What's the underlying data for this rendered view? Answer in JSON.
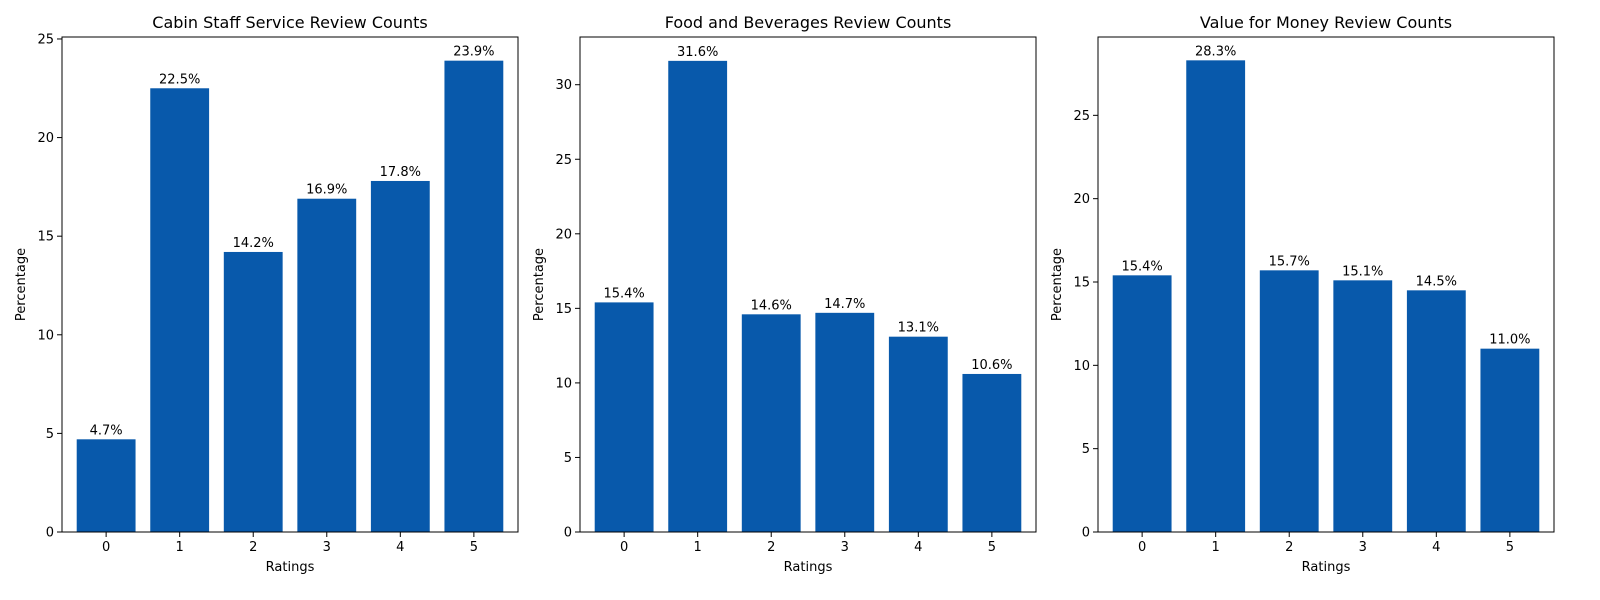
{
  "chart_data": [
    {
      "type": "bar",
      "title": "Cabin Staff Service Review Counts",
      "xlabel": "Ratings",
      "ylabel": "Percentage",
      "categories": [
        "0",
        "1",
        "2",
        "3",
        "4",
        "5"
      ],
      "values": [
        4.7,
        22.5,
        14.2,
        16.9,
        17.8,
        23.9
      ],
      "data_labels": [
        "4.7%",
        "22.5%",
        "14.2%",
        "16.9%",
        "17.8%",
        "23.9%"
      ],
      "ylim": [
        0,
        25.1
      ],
      "yticks": [
        0,
        5,
        10,
        15,
        20,
        25
      ],
      "color": "#0859AB",
      "grid": false,
      "legend": "none"
    },
    {
      "type": "bar",
      "title": "Food and Beverages Review Counts",
      "xlabel": "Ratings",
      "ylabel": "Percentage",
      "categories": [
        "0",
        "1",
        "2",
        "3",
        "4",
        "5"
      ],
      "values": [
        15.4,
        31.6,
        14.6,
        14.7,
        13.1,
        10.6
      ],
      "data_labels": [
        "15.4%",
        "31.6%",
        "14.6%",
        "14.7%",
        "13.1%",
        "10.6%"
      ],
      "ylim": [
        0,
        33.2
      ],
      "yticks": [
        0,
        5,
        10,
        15,
        20,
        25,
        30
      ],
      "color": "#0859AB",
      "grid": false,
      "legend": "none"
    },
    {
      "type": "bar",
      "title": "Value for Money Review Counts",
      "xlabel": "Ratings",
      "ylabel": "Percentage",
      "categories": [
        "0",
        "1",
        "2",
        "3",
        "4",
        "5"
      ],
      "values": [
        15.4,
        28.3,
        15.7,
        15.1,
        14.5,
        11.0
      ],
      "data_labels": [
        "15.4%",
        "28.3%",
        "15.7%",
        "15.1%",
        "14.5%",
        "11.0%"
      ],
      "ylim": [
        0,
        29.7
      ],
      "yticks": [
        0,
        5,
        10,
        15,
        20,
        25
      ],
      "color": "#0859AB",
      "grid": false,
      "legend": "none"
    }
  ]
}
